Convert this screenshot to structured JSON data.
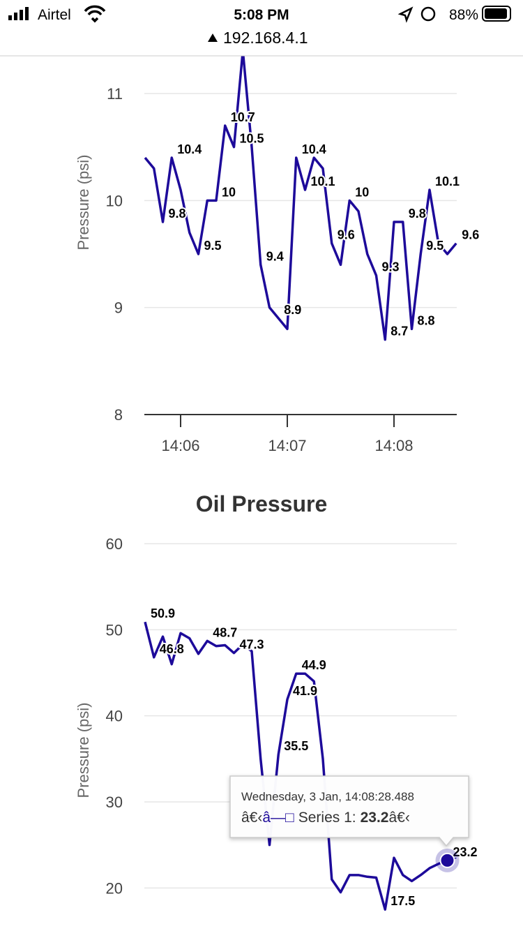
{
  "status_bar": {
    "carrier": "Airtel",
    "time": "5:08 PM",
    "battery": "88%",
    "url": "192.168.4.1"
  },
  "chart_data": [
    {
      "type": "line",
      "y_label": "Pressure (psi)",
      "categories": [
        null,
        null,
        null,
        null,
        "14:06",
        null,
        null,
        null,
        null,
        null,
        null,
        null,
        null,
        null,
        null,
        null,
        "14:07",
        null,
        null,
        null,
        null,
        null,
        null,
        null,
        null,
        null,
        null,
        null,
        "14:08",
        null,
        null,
        null,
        null,
        null,
        null,
        null
      ],
      "ylim": [
        8,
        11.4
      ],
      "yticks": [
        8,
        9,
        10,
        11
      ],
      "grid": true,
      "series": [
        {
          "color": "#1d0a9a",
          "values": [
            10.4,
            10.3,
            9.8,
            10.4,
            10.1,
            9.7,
            9.5,
            10.0,
            10.0,
            10.7,
            10.5,
            11.4,
            10.5,
            9.4,
            9.0,
            8.9,
            8.8,
            10.4,
            10.1,
            10.4,
            10.3,
            9.6,
            9.4,
            10.0,
            9.9,
            9.5,
            9.3,
            8.7,
            9.8,
            9.8,
            8.8,
            9.5,
            10.1,
            9.6,
            9.5,
            9.6
          ],
          "value_labels": [
            null,
            null,
            "9.8",
            "10.4",
            null,
            null,
            "9.5",
            null,
            "10",
            "10.7",
            "10.5",
            null,
            null,
            "9.4",
            null,
            "8.9",
            null,
            "10.4",
            "10.1",
            null,
            null,
            "9.6",
            null,
            "10",
            null,
            null,
            "9.3",
            "8.7",
            null,
            "9.8",
            "8.8",
            "9.5",
            "10.1",
            null,
            null,
            "9.6"
          ]
        }
      ]
    },
    {
      "type": "line",
      "title": "Oil Pressure",
      "y_label": "Pressure (psi)",
      "ylim": [
        15,
        60
      ],
      "yticks": [
        20,
        30,
        40,
        50,
        60
      ],
      "grid": true,
      "series": [
        {
          "name": "Series 1",
          "color": "#1d0a9a",
          "values": [
            50.9,
            46.8,
            49.2,
            46.0,
            49.6,
            49.0,
            47.2,
            48.7,
            48.1,
            48.2,
            47.3,
            48.3,
            47.5,
            35,
            25,
            35.5,
            41.9,
            44.9,
            44.9,
            44.0,
            35,
            21,
            19.5,
            21.5,
            21.5,
            21.3,
            21.2,
            17.5,
            23.5,
            21.5,
            20.8,
            21.5,
            22.3,
            22.8,
            23.2,
            23.6
          ],
          "value_labels": [
            "50.9",
            "46.8",
            null,
            null,
            null,
            null,
            null,
            "48.7",
            null,
            null,
            "47.3",
            null,
            null,
            null,
            null,
            "35.5",
            "41.9",
            "44.9",
            null,
            null,
            null,
            null,
            null,
            null,
            null,
            null,
            null,
            "17.5",
            null,
            null,
            null,
            null,
            null,
            null,
            "23.2",
            null
          ]
        }
      ],
      "tooltip": {
        "header": "Wednesday, 3 Jan, 14:08:28.488",
        "prefix": "â€‹",
        "symbol": "â—□",
        "name_label": "Series 1:",
        "value": 23.2,
        "suffix": "â€‹"
      }
    }
  ]
}
